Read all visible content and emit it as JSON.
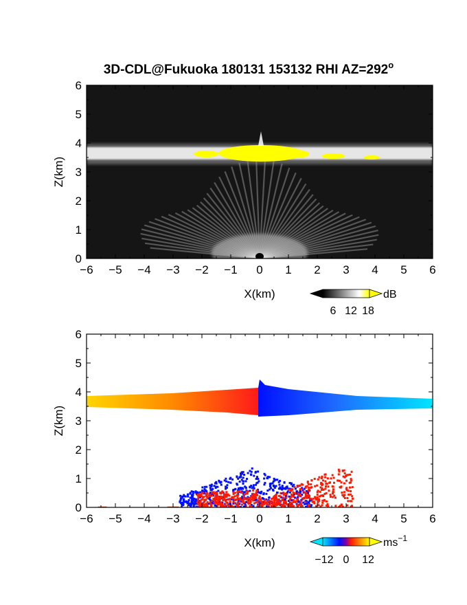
{
  "title": "3D-CDL@Fukuoka 180131 153132 RHI AZ=292",
  "title_suffix": "o",
  "chart_data": [
    {
      "type": "heatmap",
      "name": "backscatter intensity",
      "xlabel": "X(km)",
      "ylabel": "Z(km)",
      "xlim": [
        -6,
        6
      ],
      "ylim": [
        0,
        6
      ],
      "xticks": [
        -6,
        -5,
        -4,
        -3,
        -2,
        -1,
        0,
        1,
        2,
        3,
        4,
        5,
        6
      ],
      "yticks": [
        0,
        1,
        2,
        3,
        4,
        5,
        6
      ],
      "grid": false,
      "background_color": "#151515",
      "features": [
        {
          "label": "layer",
          "x": [
            -6,
            6
          ],
          "z_center": 3.6,
          "z_thickness": 0.3,
          "color": "#e0e0e0"
        },
        {
          "label": "strong",
          "x": [
            -2.2,
            4.2
          ],
          "z_center": 3.6,
          "color": "#ffff00"
        },
        {
          "label": "near-radar rays",
          "x": [
            -3,
            3
          ],
          "z": [
            0,
            1.7
          ],
          "color": "#bcbcbc"
        }
      ],
      "colorbar": {
        "unit": "dB",
        "ticks": [
          6,
          12,
          18
        ],
        "colors": [
          "#000000",
          "#ffffff",
          "#ffff00"
        ]
      }
    },
    {
      "type": "heatmap",
      "name": "radial velocity",
      "xlabel": "X(km)",
      "ylabel": "Z(km)",
      "xlim": [
        -6,
        6
      ],
      "ylim": [
        0,
        6
      ],
      "xticks": [
        -6,
        -5,
        -4,
        -3,
        -2,
        -1,
        0,
        1,
        2,
        3,
        4,
        5,
        6
      ],
      "yticks": [
        0,
        1,
        2,
        3,
        4,
        5,
        6
      ],
      "grid": false,
      "features": [
        {
          "label": "layer west",
          "x": [
            -6,
            -0.1
          ],
          "z_center": 3.6,
          "colors": [
            "#ffd400",
            "#ff7f00",
            "#ff1a1a"
          ]
        },
        {
          "label": "layer east",
          "x": [
            -0.1,
            6
          ],
          "z_center": 3.6,
          "colors": [
            "#0010ff",
            "#1e6cff",
            "#00e5ff"
          ]
        },
        {
          "label": "low blue",
          "x": [
            -3,
            2
          ],
          "z": [
            0,
            1.5
          ],
          "color": "#0010ff"
        },
        {
          "label": "low red",
          "x": [
            -2.3,
            3.3
          ],
          "z": [
            0,
            1.3
          ],
          "color": "#ff1a00"
        }
      ],
      "colorbar": {
        "unit": "ms",
        "unit_superscript": "−1",
        "ticks": [
          "−12",
          "0",
          "12"
        ],
        "colors": [
          "#00e5ff",
          "#0010ff",
          "#ff1a00",
          "#ffff00"
        ]
      }
    }
  ]
}
